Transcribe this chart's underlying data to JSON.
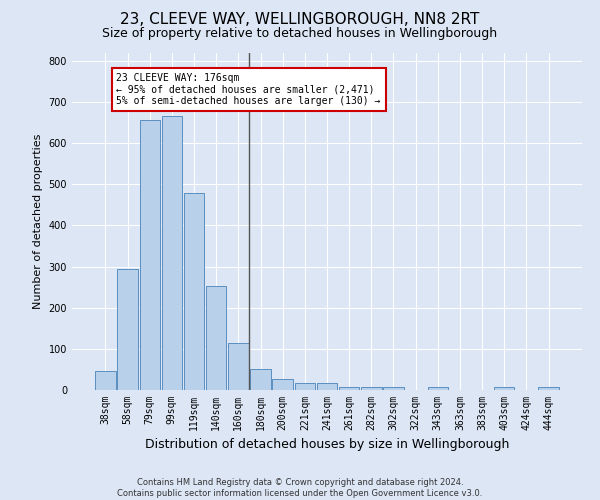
{
  "title": "23, CLEEVE WAY, WELLINGBOROUGH, NN8 2RT",
  "subtitle": "Size of property relative to detached houses in Wellingborough",
  "xlabel": "Distribution of detached houses by size in Wellingborough",
  "ylabel": "Number of detached properties",
  "footer_line1": "Contains HM Land Registry data © Crown copyright and database right 2024.",
  "footer_line2": "Contains public sector information licensed under the Open Government Licence v3.0.",
  "bar_labels": [
    "38sqm",
    "58sqm",
    "79sqm",
    "99sqm",
    "119sqm",
    "140sqm",
    "160sqm",
    "180sqm",
    "200sqm",
    "221sqm",
    "241sqm",
    "261sqm",
    "282sqm",
    "302sqm",
    "322sqm",
    "343sqm",
    "363sqm",
    "383sqm",
    "403sqm",
    "424sqm",
    "444sqm"
  ],
  "bar_values": [
    45,
    293,
    655,
    665,
    478,
    252,
    113,
    50,
    27,
    16,
    16,
    8,
    7,
    8,
    0,
    8,
    0,
    0,
    8,
    0,
    8
  ],
  "bar_color": "#b8d0ea",
  "bar_edge_color": "#5a8fc0",
  "vline_color": "#555555",
  "annotation_text_line1": "23 CLEEVE WAY: 176sqm",
  "annotation_text_line2": "← 95% of detached houses are smaller (2,471)",
  "annotation_text_line3": "5% of semi-detached houses are larger (130) →",
  "annotation_box_facecolor": "#ffffff",
  "annotation_box_edgecolor": "#cc0000",
  "ylim": [
    0,
    820
  ],
  "yticks": [
    0,
    100,
    200,
    300,
    400,
    500,
    600,
    700,
    800
  ],
  "bg_color": "#dce6f5",
  "plot_bg_color": "#dce6f5",
  "grid_color": "#ffffff",
  "title_fontsize": 11,
  "subtitle_fontsize": 9,
  "ylabel_fontsize": 8,
  "xlabel_fontsize": 9,
  "tick_fontsize": 7,
  "ytick_fontsize": 7,
  "footer_fontsize": 6,
  "annot_fontsize": 7
}
